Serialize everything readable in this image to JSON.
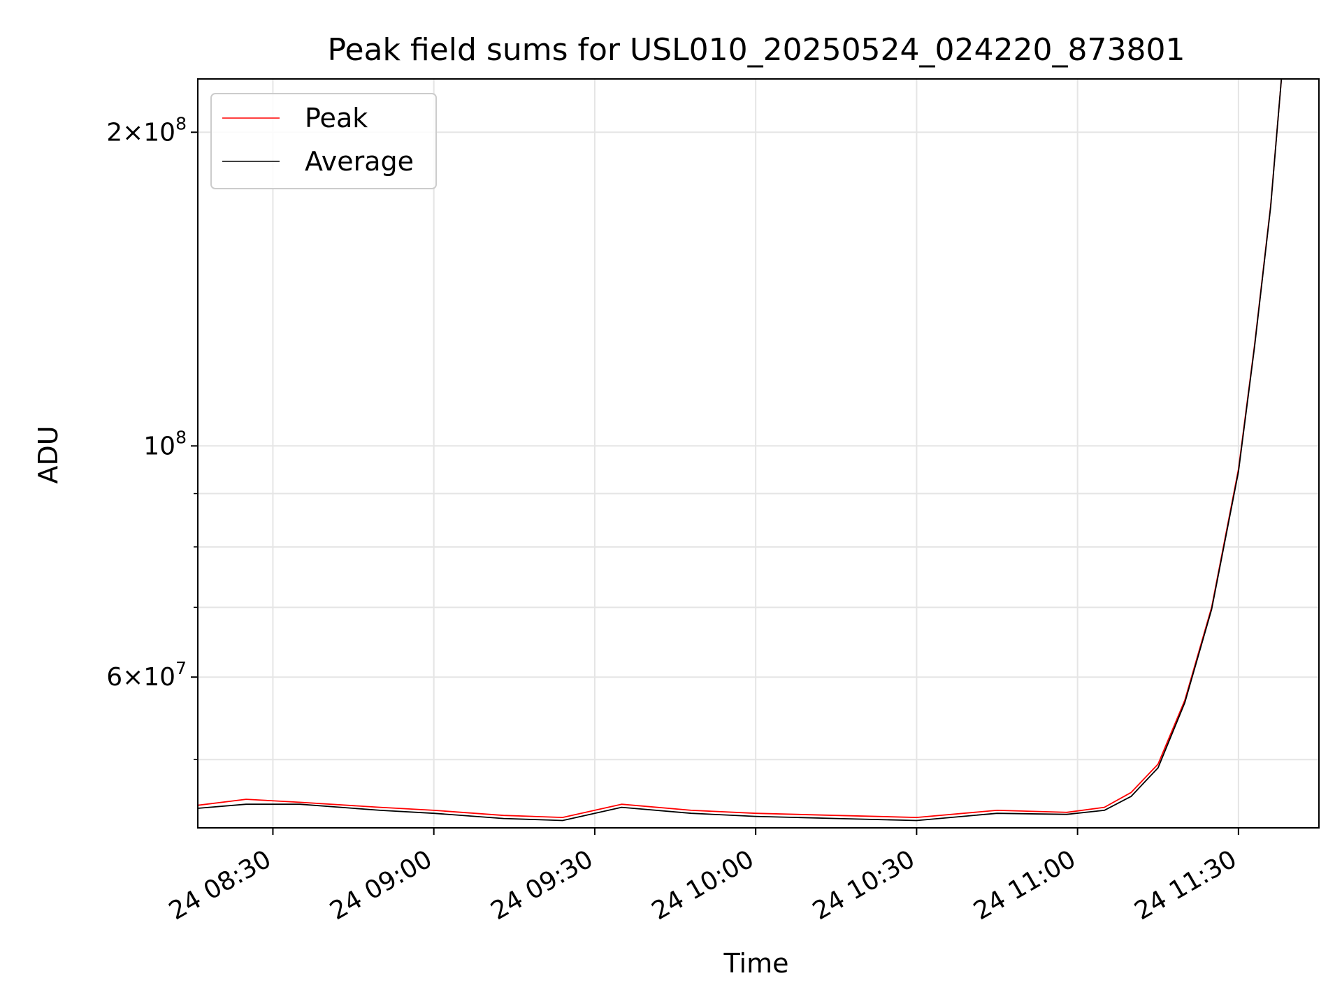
{
  "chart_data": {
    "type": "line",
    "title": "Peak field sums for USL010_20250524_024220_873801",
    "xlabel": "Time",
    "ylabel": "ADU",
    "yscale": "log",
    "ylim": [
      43000000,
      225000000
    ],
    "xlim": [
      "2025-05-24 08:16:00",
      "2025-05-24 11:45:00"
    ],
    "grid": true,
    "legend_position": "upper left",
    "x_ticks": [
      {
        "x": "2025-05-24 08:30",
        "label": "24 08:30"
      },
      {
        "x": "2025-05-24 09:00",
        "label": "24 09:00"
      },
      {
        "x": "2025-05-24 09:30",
        "label": "24 09:30"
      },
      {
        "x": "2025-05-24 10:00",
        "label": "24 10:00"
      },
      {
        "x": "2025-05-24 10:30",
        "label": "24 10:30"
      },
      {
        "x": "2025-05-24 11:00",
        "label": "24 11:00"
      },
      {
        "x": "2025-05-24 11:30",
        "label": "24 11:30"
      }
    ],
    "y_ticks": [
      {
        "y": 60000000,
        "base": "6×10",
        "exp": "7"
      },
      {
        "y": 100000000,
        "base": "10",
        "exp": "8"
      },
      {
        "y": 200000000,
        "base": "2×10",
        "exp": "8"
      }
    ],
    "y_minor_ticks": [
      50000000,
      70000000,
      80000000,
      90000000
    ],
    "series": [
      {
        "name": "Peak",
        "color": "#ff0000",
        "x": [
          "2025-05-24 08:16",
          "2025-05-24 08:25",
          "2025-05-24 08:35",
          "2025-05-24 08:50",
          "2025-05-24 09:00",
          "2025-05-24 09:13",
          "2025-05-24 09:24",
          "2025-05-24 09:35",
          "2025-05-24 09:48",
          "2025-05-24 10:00",
          "2025-05-24 10:15",
          "2025-05-24 10:30",
          "2025-05-24 10:45",
          "2025-05-24 10:58",
          "2025-05-24 11:05",
          "2025-05-24 11:10",
          "2025-05-24 11:15",
          "2025-05-24 11:20",
          "2025-05-24 11:25",
          "2025-05-24 11:30",
          "2025-05-24 11:33",
          "2025-05-24 11:36",
          "2025-05-24 11:38"
        ],
        "values": [
          45200000,
          45800000,
          45500000,
          45000000,
          44700000,
          44200000,
          44000000,
          45300000,
          44700000,
          44400000,
          44200000,
          44000000,
          44700000,
          44500000,
          45000000,
          46500000,
          49500000,
          57000000,
          70000000,
          95000000,
          125000000,
          170000000,
          225000000
        ]
      },
      {
        "name": "Average",
        "color": "#000000",
        "x": [
          "2025-05-24 08:16",
          "2025-05-24 08:25",
          "2025-05-24 08:35",
          "2025-05-24 08:50",
          "2025-05-24 09:00",
          "2025-05-24 09:13",
          "2025-05-24 09:24",
          "2025-05-24 09:35",
          "2025-05-24 09:48",
          "2025-05-24 10:00",
          "2025-05-24 10:15",
          "2025-05-24 10:30",
          "2025-05-24 10:45",
          "2025-05-24 10:58",
          "2025-05-24 11:05",
          "2025-05-24 11:10",
          "2025-05-24 11:15",
          "2025-05-24 11:20",
          "2025-05-24 11:25",
          "2025-05-24 11:30",
          "2025-05-24 11:33",
          "2025-05-24 11:36",
          "2025-05-24 11:38"
        ],
        "values": [
          44900000,
          45300000,
          45300000,
          44700000,
          44400000,
          43900000,
          43700000,
          45000000,
          44400000,
          44100000,
          43900000,
          43700000,
          44400000,
          44300000,
          44700000,
          46100000,
          49100000,
          56700000,
          69700000,
          94500000,
          124500000,
          169500000,
          225000000
        ]
      }
    ]
  }
}
